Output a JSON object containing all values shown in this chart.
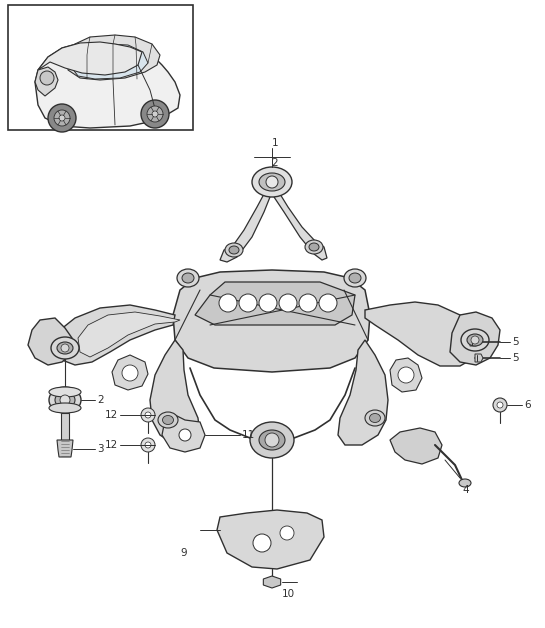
{
  "bg": "#ffffff",
  "lc": "#303030",
  "fig_w": 5.45,
  "fig_h": 6.28,
  "dpi": 100
}
